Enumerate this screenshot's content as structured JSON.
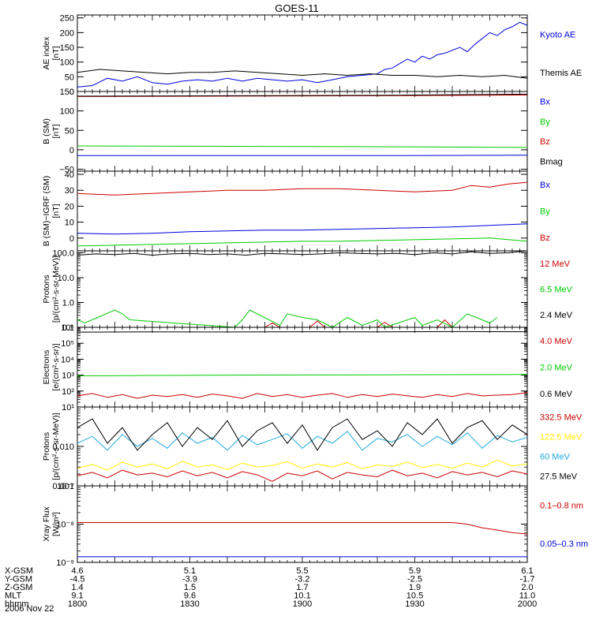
{
  "title": "GOES-11",
  "date": "2006 Nov 22",
  "footer": {
    "rows": [
      {
        "label": "X-GSM",
        "values": [
          "4.6",
          "5.1",
          "5.5",
          "5.9",
          "6.1"
        ]
      },
      {
        "label": "Y-GSM",
        "values": [
          "-4.5",
          "-3.9",
          "-3.2",
          "-2.5",
          "-1.7"
        ]
      },
      {
        "label": "Z-GSM",
        "values": [
          "1.4",
          "1.5",
          "1.7",
          "1.9",
          "2.0"
        ]
      },
      {
        "label": "MLT",
        "values": [
          "9.1",
          "9.6",
          "10.1",
          "10.5",
          "11.0"
        ]
      },
      {
        "label": "hhmm",
        "values": [
          "1800",
          "1830",
          "1900",
          "1930",
          "2000"
        ]
      }
    ]
  },
  "chart_data": [
    {
      "type": "line",
      "ylabel": [
        "AE index",
        "[nT]"
      ],
      "yscale": "linear",
      "ylim": [
        0,
        260
      ],
      "yticks": [
        0,
        50,
        100,
        150,
        200,
        250
      ],
      "ytick_labels": [
        "0",
        "50",
        "100",
        "150",
        "200",
        "250"
      ],
      "xlim": [
        1080,
        1200
      ],
      "series": [
        {
          "name": "Kyoto AE",
          "color": "#0000dd",
          "x": [
            1080,
            1084,
            1088,
            1092,
            1096,
            1100,
            1104,
            1108,
            1112,
            1116,
            1120,
            1124,
            1128,
            1132,
            1136,
            1140,
            1144,
            1148,
            1152,
            1156,
            1160,
            1162,
            1164,
            1166,
            1168,
            1170,
            1172,
            1174,
            1176,
            1178,
            1180,
            1182,
            1184,
            1186,
            1188,
            1190,
            1192,
            1194,
            1196,
            1198,
            1200
          ],
          "y": [
            15,
            20,
            45,
            35,
            50,
            30,
            25,
            35,
            40,
            35,
            45,
            35,
            45,
            40,
            35,
            40,
            30,
            40,
            50,
            55,
            60,
            75,
            80,
            95,
            110,
            100,
            120,
            110,
            125,
            130,
            140,
            150,
            135,
            160,
            180,
            200,
            190,
            210,
            220,
            235,
            225
          ]
        },
        {
          "name": "Themis AE",
          "color": "#000000",
          "x": [
            1080,
            1086,
            1092,
            1098,
            1104,
            1110,
            1116,
            1122,
            1128,
            1134,
            1140,
            1146,
            1152,
            1158,
            1164,
            1170,
            1176,
            1182,
            1188,
            1194,
            1200
          ],
          "y": [
            65,
            75,
            70,
            65,
            60,
            65,
            65,
            70,
            65,
            60,
            55,
            60,
            55,
            60,
            55,
            55,
            50,
            55,
            50,
            55,
            45
          ]
        }
      ]
    },
    {
      "type": "line",
      "ylabel": [
        "B (SM)",
        "[nT]"
      ],
      "yscale": "linear",
      "ylim": [
        -55,
        150
      ],
      "yticks": [
        -50,
        0,
        50,
        100,
        150
      ],
      "ytick_labels": [
        "−50",
        "0",
        "50",
        "100",
        "150"
      ],
      "xlim": [
        1080,
        1200
      ],
      "series": [
        {
          "name": "Bx",
          "color": "#0000dd",
          "x": [
            1080,
            1120,
            1160,
            1200
          ],
          "y": [
            -15,
            -15,
            -15,
            -14
          ]
        },
        {
          "name": "By",
          "color": "#00cc00",
          "x": [
            1080,
            1120,
            1160,
            1200
          ],
          "y": [
            10,
            9,
            8,
            6
          ]
        },
        {
          "name": "Bz",
          "color": "#cc0000",
          "x": [
            1080,
            1120,
            1160,
            1200
          ],
          "y": [
            137,
            138,
            139,
            141
          ]
        },
        {
          "name": "Bmag",
          "color": "#000000",
          "x": [
            1080,
            1120,
            1160,
            1200
          ],
          "y": [
            138,
            139,
            140,
            143
          ]
        }
      ]
    },
    {
      "type": "line",
      "ylabel": [
        "B (SM)−IGRF (SM)",
        "[nT]"
      ],
      "yscale": "linear",
      "ylim": [
        -8,
        42
      ],
      "yticks": [
        0,
        10,
        20,
        30,
        40
      ],
      "ytick_labels": [
        "0",
        "10",
        "20",
        "30",
        "40"
      ],
      "xlim": [
        1080,
        1200
      ],
      "series": [
        {
          "name": "Bx",
          "color": "#0000dd",
          "x": [
            1080,
            1090,
            1100,
            1110,
            1120,
            1130,
            1140,
            1150,
            1160,
            1170,
            1180,
            1190,
            1200
          ],
          "y": [
            3,
            2.5,
            3,
            4,
            4.5,
            5,
            5,
            5.5,
            6,
            6.5,
            7,
            8,
            9
          ]
        },
        {
          "name": "By",
          "color": "#00cc00",
          "x": [
            1080,
            1090,
            1100,
            1110,
            1120,
            1130,
            1140,
            1150,
            1160,
            1170,
            1180,
            1190,
            1200
          ],
          "y": [
            -5,
            -4.5,
            -4,
            -3.5,
            -3,
            -2.5,
            -2,
            -2,
            -1.5,
            -1,
            -0.5,
            0,
            -2
          ]
        },
        {
          "name": "Bz",
          "color": "#cc0000",
          "x": [
            1080,
            1090,
            1100,
            1110,
            1120,
            1130,
            1140,
            1150,
            1160,
            1170,
            1180,
            1185,
            1190,
            1195,
            1200
          ],
          "y": [
            28,
            27,
            28,
            29,
            30,
            30,
            31,
            31,
            30,
            29,
            30,
            33,
            32,
            34,
            35
          ]
        }
      ]
    },
    {
      "type": "line",
      "ylabel": [
        "Protons",
        "[p/(cm²-s-sr-MeV)]"
      ],
      "yscale": "log",
      "ylim": [
        0.1,
        120
      ],
      "yticks": [
        0.1,
        1,
        10,
        100
      ],
      "ytick_labels": [
        "0.1",
        "1.0",
        "10.0",
        "100.0"
      ],
      "xlim": [
        1080,
        1200
      ],
      "series": [
        {
          "name": "12 MeV",
          "color": "#cc0000",
          "x": [
            1130,
            1132,
            1134,
            1142,
            1144,
            1146,
            1160,
            1162,
            1164,
            1176,
            1178,
            1180
          ],
          "y": [
            0.1,
            0.15,
            0.1,
            0.1,
            0.18,
            0.1,
            0.1,
            0.16,
            0.1,
            0.1,
            0.2,
            0.1
          ]
        },
        {
          "name": "6.5 MeV",
          "color": "#00cc00",
          "x": [
            1080,
            1082,
            1090,
            1092,
            1094,
            1122,
            1124,
            1126,
            1134,
            1136,
            1140,
            1144,
            1148,
            1152,
            1156,
            1160,
            1162,
            1170,
            1172,
            1176,
            1180,
            1184,
            1188,
            1190,
            1192
          ],
          "y": [
            0.2,
            0.15,
            0.5,
            0.35,
            0.2,
            0.1,
            0.2,
            0.5,
            0.12,
            0.35,
            0.25,
            0.2,
            0.1,
            0.25,
            0.12,
            0.2,
            0.1,
            0.25,
            0.12,
            0.2,
            0.1,
            0.35,
            0.2,
            0.15,
            0.25
          ]
        },
        {
          "name": "2.4 MeV",
          "color": "#000000",
          "x": [
            1080,
            1085,
            1090,
            1095,
            1100,
            1105,
            1110,
            1115,
            1120,
            1125,
            1130,
            1135,
            1140,
            1145,
            1150,
            1155,
            1160,
            1165,
            1170,
            1175,
            1180,
            1185,
            1190,
            1195,
            1200
          ],
          "y": [
            80,
            90,
            85,
            95,
            80,
            90,
            95,
            85,
            90,
            80,
            95,
            90,
            85,
            90,
            100,
            95,
            90,
            95,
            85,
            100,
            90,
            110,
            95,
            100,
            120
          ]
        }
      ]
    },
    {
      "type": "line",
      "ylabel": [
        "Electrons",
        "[e/(cm²-s-sr)]"
      ],
      "yscale": "log",
      "ylim": [
        10,
        1000000
      ],
      "yticks": [
        10,
        100,
        1000,
        10000,
        100000,
        1000000
      ],
      "ytick_labels": [
        "10¹",
        "10²",
        "10³",
        "10⁴",
        "10⁵",
        "10⁶"
      ],
      "xlim": [
        1080,
        1200
      ],
      "series": [
        {
          "name": "4.0 MeV",
          "color": "#cc0000",
          "x": [
            1080,
            1084,
            1088,
            1092,
            1096,
            1100,
            1104,
            1108,
            1112,
            1116,
            1120,
            1124,
            1128,
            1132,
            1136,
            1140,
            1144,
            1148,
            1152,
            1156,
            1160,
            1164,
            1168,
            1172,
            1176,
            1180,
            1184,
            1188,
            1192,
            1196,
            1200
          ],
          "y": [
            50,
            70,
            40,
            60,
            35,
            55,
            45,
            60,
            40,
            65,
            50,
            35,
            70,
            45,
            60,
            40,
            55,
            70,
            40,
            60,
            45,
            65,
            50,
            40,
            60,
            45,
            70,
            50,
            55,
            60,
            80
          ]
        },
        {
          "name": "2.0 MeV",
          "color": "#00cc00",
          "x": [
            1080,
            1120,
            1160,
            1200
          ],
          "y": [
            900,
            1000,
            1050,
            1100
          ]
        },
        {
          "name": "0.6 MeV",
          "color": "#000000",
          "x": [
            1080,
            1100,
            1120,
            1140,
            1160,
            1180,
            1200
          ],
          "y": [
            500000,
            520000,
            510000,
            530000,
            520000,
            540000,
            530000
          ]
        }
      ]
    },
    {
      "type": "line",
      "ylabel": [
        "Protons",
        "[p/(cm²-s-sr-MeV)]"
      ],
      "yscale": "log",
      "ylim": [
        0.001,
        0.1
      ],
      "yticks": [
        0.001,
        0.01
      ],
      "ytick_labels": [
        "0.001",
        "0.010"
      ],
      "xlim": [
        1080,
        1200
      ],
      "series": [
        {
          "name": "332.5 MeV",
          "color": "#cc0000",
          "x": [
            1080,
            1084,
            1088,
            1092,
            1096,
            1100,
            1104,
            1108,
            1112,
            1116,
            1120,
            1124,
            1128,
            1132,
            1136,
            1140,
            1144,
            1148,
            1152,
            1156,
            1160,
            1164,
            1168,
            1172,
            1176,
            1180,
            1184,
            1188,
            1192,
            1196,
            1200
          ],
          "y": [
            0.0018,
            0.0022,
            0.0016,
            0.0025,
            0.0019,
            0.0021,
            0.0017,
            0.0024,
            0.0018,
            0.0022,
            0.0016,
            0.0023,
            0.0019,
            0.0013,
            0.0021,
            0.0018,
            0.0024,
            0.0015,
            0.0022,
            0.0019,
            0.0017,
            0.0025,
            0.0018,
            0.0021,
            0.0016,
            0.0023,
            0.0019,
            0.0022,
            0.0017,
            0.0024,
            0.002
          ]
        },
        {
          "name": "122.5 MeV",
          "color": "#ffee00",
          "x": [
            1080,
            1084,
            1088,
            1092,
            1096,
            1100,
            1104,
            1108,
            1112,
            1116,
            1120,
            1124,
            1128,
            1132,
            1136,
            1140,
            1144,
            1148,
            1152,
            1156,
            1160,
            1164,
            1168,
            1172,
            1176,
            1180,
            1184,
            1188,
            1192,
            1196,
            1200
          ],
          "y": [
            0.0028,
            0.0035,
            0.0025,
            0.004,
            0.003,
            0.0036,
            0.0027,
            0.0042,
            0.003,
            0.0034,
            0.0026,
            0.0038,
            0.003,
            0.0033,
            0.0041,
            0.0028,
            0.0036,
            0.003,
            0.0039,
            0.0027,
            0.0034,
            0.0031,
            0.004,
            0.0029,
            0.0035,
            0.0028,
            0.0038,
            0.003,
            0.0045,
            0.0032,
            0.0036
          ]
        },
        {
          "name": "60 MeV",
          "color": "#22aadd",
          "x": [
            1080,
            1084,
            1088,
            1092,
            1096,
            1100,
            1104,
            1108,
            1112,
            1116,
            1120,
            1124,
            1128,
            1132,
            1136,
            1140,
            1144,
            1148,
            1152,
            1156,
            1160,
            1164,
            1168,
            1172,
            1176,
            1180,
            1184,
            1188,
            1192,
            1196,
            1200
          ],
          "y": [
            0.012,
            0.018,
            0.008,
            0.02,
            0.01,
            0.016,
            0.009,
            0.022,
            0.012,
            0.017,
            0.008,
            0.019,
            0.011,
            0.015,
            0.021,
            0.009,
            0.018,
            0.012,
            0.024,
            0.008,
            0.016,
            0.013,
            0.02,
            0.01,
            0.018,
            0.011,
            0.022,
            0.009,
            0.019,
            0.013,
            0.017
          ]
        },
        {
          "name": "27.5 MeV",
          "color": "#000000",
          "x": [
            1080,
            1084,
            1088,
            1092,
            1096,
            1100,
            1104,
            1108,
            1112,
            1116,
            1120,
            1124,
            1128,
            1132,
            1136,
            1140,
            1144,
            1148,
            1152,
            1156,
            1160,
            1164,
            1168,
            1172,
            1176,
            1180,
            1184,
            1188,
            1192,
            1196,
            1200
          ],
          "y": [
            0.03,
            0.05,
            0.012,
            0.03,
            0.008,
            0.02,
            0.04,
            0.01,
            0.03,
            0.015,
            0.045,
            0.01,
            0.025,
            0.04,
            0.012,
            0.035,
            0.008,
            0.03,
            0.05,
            0.015,
            0.025,
            0.01,
            0.04,
            0.02,
            0.05,
            0.012,
            0.03,
            0.045,
            0.015,
            0.035,
            0.02
          ]
        }
      ]
    },
    {
      "type": "line",
      "ylabel": [
        "Xray Flux",
        "[W/m²]"
      ],
      "yscale": "log",
      "ylim": [
        1e-09,
        1e-07
      ],
      "yticks": [
        1e-09,
        1e-08,
        1e-07
      ],
      "ytick_labels": [
        "10⁻⁹",
        "10⁻⁸",
        "10⁻⁷"
      ],
      "xlim": [
        1080,
        1200
      ],
      "series": [
        {
          "name": "0.1–0.8 nm",
          "color": "#cc0000",
          "x": [
            1080,
            1100,
            1120,
            1140,
            1160,
            1180,
            1184,
            1188,
            1192,
            1196,
            1200
          ],
          "y": [
            1.1e-08,
            1.1e-08,
            1.1e-08,
            1.1e-08,
            1.1e-08,
            1.1e-08,
            1e-08,
            8e-09,
            7e-09,
            6e-09,
            5.5e-09
          ]
        },
        {
          "name": "0.05–0.3 nm",
          "color": "#0000dd",
          "x": [
            1080,
            1120,
            1160,
            1200
          ],
          "y": [
            1.4e-09,
            1.4e-09,
            1.4e-09,
            1.4e-09
          ]
        }
      ]
    }
  ]
}
